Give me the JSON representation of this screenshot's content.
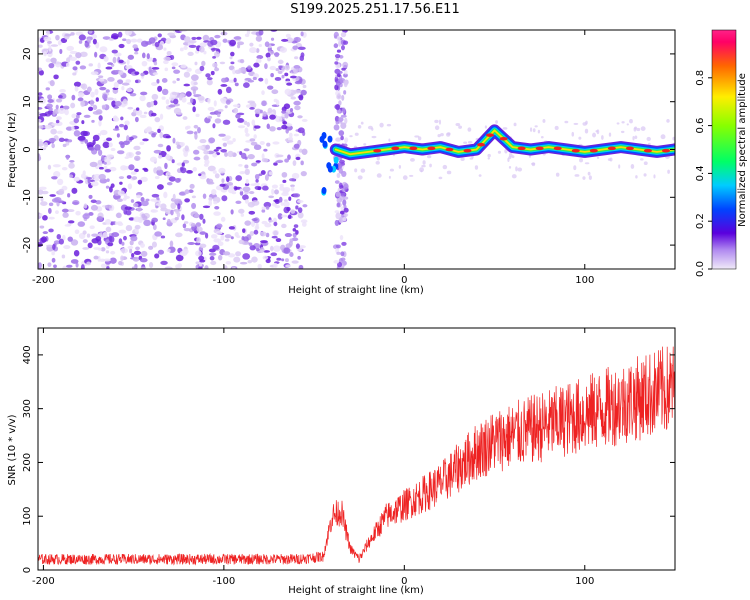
{
  "title": "S199.2025.251.17.56.E11",
  "chart_data": [
    {
      "type": "heatmap",
      "xlabel": "Height of straight line (km)",
      "ylabel": "Frequency (Hz)",
      "xlim": [
        -203,
        150
      ],
      "ylim": [
        -25,
        25
      ],
      "xticks": [
        "-200",
        "-100",
        "0",
        "100"
      ],
      "yticks": [
        "20",
        "10",
        "0",
        "-10",
        "-20"
      ],
      "colorbar": {
        "label": "Normalized spectral amplitude",
        "range": [
          0,
          1
        ],
        "ticks": [
          "0.0",
          "0.2",
          "0.4",
          "0.6",
          "0.8"
        ]
      },
      "ridge": {
        "x": [
          -38,
          -30,
          -20,
          -10,
          0,
          10,
          20,
          30,
          40,
          45,
          50,
          60,
          70,
          80,
          90,
          100,
          110,
          120,
          130,
          140,
          150
        ],
        "y": [
          0,
          -1,
          -0.5,
          0,
          0.5,
          0,
          0.5,
          -0.5,
          0,
          2,
          4,
          0.5,
          0,
          0.5,
          0,
          -0.5,
          0,
          0.5,
          0,
          -0.5,
          0
        ]
      }
    },
    {
      "type": "line",
      "xlabel": "Height of straight line (km)",
      "ylabel": "SNR (10 * v/v)",
      "xlim": [
        -203,
        150
      ],
      "ylim": [
        0,
        450
      ],
      "xticks": [
        "-200",
        "-100",
        "0",
        "100"
      ],
      "yticks": [
        "400",
        "300",
        "200",
        "100",
        "0"
      ],
      "series": [
        {
          "name": "SNR",
          "color": "#ee2222",
          "x": [
            -203,
            -180,
            -150,
            -120,
            -90,
            -60,
            -45,
            -40,
            -35,
            -30,
            -25,
            -20,
            -10,
            0,
            10,
            20,
            30,
            40,
            45,
            50,
            60,
            80,
            100,
            120,
            140,
            150
          ],
          "y": [
            20,
            20,
            20,
            20,
            20,
            20,
            25,
            100,
            110,
            40,
            20,
            50,
            100,
            120,
            140,
            160,
            190,
            220,
            230,
            240,
            250,
            270,
            290,
            310,
            330,
            340
          ]
        }
      ]
    }
  ]
}
